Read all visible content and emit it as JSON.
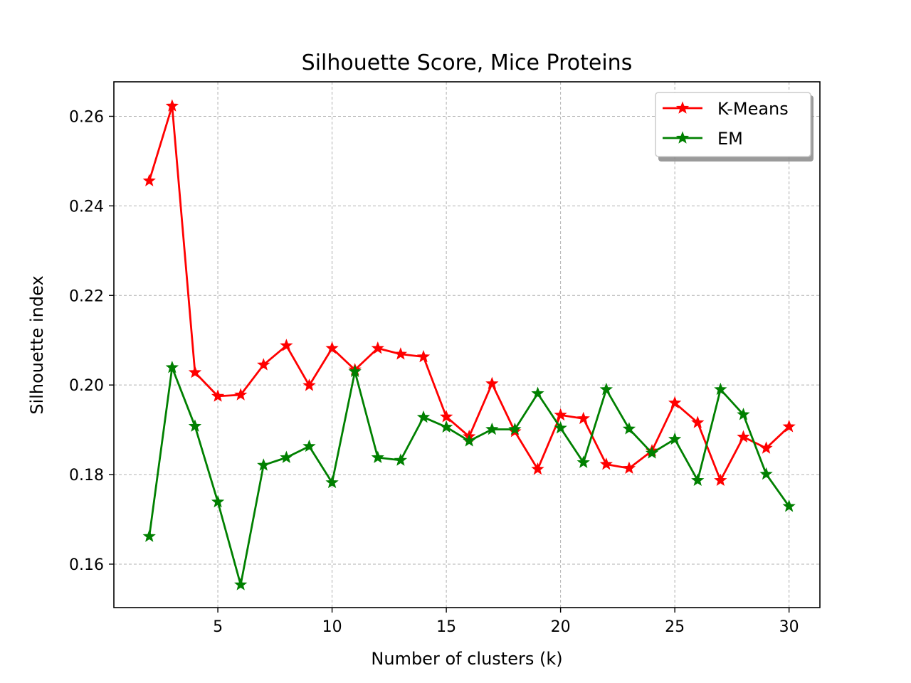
{
  "chart_data": {
    "type": "line",
    "title": "Silhouette Score, Mice Proteins",
    "xlabel": "Number of clusters (k)",
    "ylabel": "Silhouette index",
    "xlim": [
      0.45,
      31.35
    ],
    "ylim": [
      0.1503,
      0.2677
    ],
    "xticks": [
      5,
      10,
      15,
      20,
      25,
      30
    ],
    "yticks": [
      0.16,
      0.18,
      0.2,
      0.22,
      0.24,
      0.26
    ],
    "xtick_labels": [
      "5",
      "10",
      "15",
      "20",
      "25",
      "30"
    ],
    "ytick_labels": [
      "0.16",
      "0.18",
      "0.20",
      "0.22",
      "0.24",
      "0.26"
    ],
    "grid": true,
    "legend_position": "top-right",
    "x": [
      2,
      3,
      4,
      5,
      6,
      7,
      8,
      9,
      10,
      11,
      12,
      13,
      14,
      15,
      16,
      17,
      18,
      19,
      20,
      21,
      22,
      23,
      24,
      25,
      26,
      27,
      28,
      29,
      30
    ],
    "series": [
      {
        "name": "K-Means",
        "color": "#ff0000",
        "marker": "star",
        "values": [
          0.2456,
          0.2623,
          0.2028,
          0.1975,
          0.1978,
          0.2045,
          0.2088,
          0.1999,
          0.2082,
          0.2034,
          0.2082,
          0.2069,
          0.2063,
          0.1929,
          0.1885,
          0.2003,
          0.1896,
          0.1812,
          0.1933,
          0.1925,
          0.1823,
          0.1814,
          0.1853,
          0.196,
          0.1916,
          0.1787,
          0.1884,
          0.1859,
          0.1907
        ]
      },
      {
        "name": "EM",
        "color": "#008000",
        "marker": "star",
        "values": [
          0.1662,
          0.2039,
          0.1908,
          0.1739,
          0.1554,
          0.1821,
          0.1838,
          0.1863,
          0.1782,
          0.203,
          0.1838,
          0.1832,
          0.1928,
          0.1906,
          0.1875,
          0.1901,
          0.1901,
          0.1981,
          0.1904,
          0.1827,
          0.199,
          0.1902,
          0.1848,
          0.1879,
          0.1787,
          0.199,
          0.1934,
          0.1801,
          0.1729
        ]
      }
    ]
  }
}
